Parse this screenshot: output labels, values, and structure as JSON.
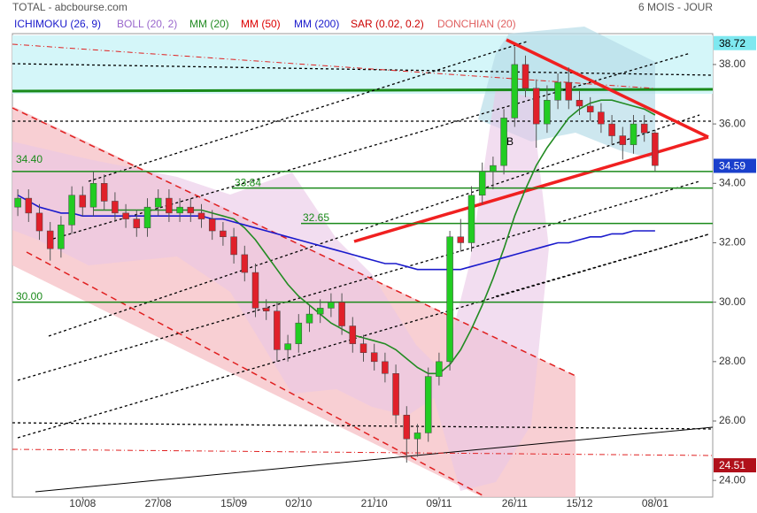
{
  "chart_data": {
    "type": "candlestick",
    "title": "TOTAL - abcbourse.com",
    "subtitle": "6 MOIS - JOUR",
    "up_color": "#22cc22",
    "down_color": "#e0202a",
    "categories": [
      null,
      null,
      null,
      null,
      null,
      null,
      "10/08",
      null,
      null,
      null,
      null,
      null,
      null,
      "27/08",
      null,
      null,
      null,
      null,
      null,
      null,
      "15/09",
      null,
      null,
      null,
      null,
      null,
      "02/10",
      null,
      null,
      null,
      null,
      null,
      null,
      "21/10",
      null,
      null,
      null,
      null,
      null,
      "09/11",
      null,
      null,
      null,
      null,
      null,
      null,
      "26/11",
      null,
      null,
      null,
      null,
      null,
      "15/12",
      null,
      null,
      null,
      null,
      null,
      null,
      "08/01"
    ],
    "open": [
      33.2,
      33.5,
      33.0,
      32.4,
      31.8,
      32.6,
      33.6,
      33.2,
      34.0,
      33.4,
      33.0,
      32.8,
      32.5,
      33.2,
      33.5,
      33.0,
      33.2,
      33.0,
      32.8,
      32.4,
      32.2,
      31.6,
      31.0,
      29.8,
      29.7,
      28.4,
      28.6,
      29.3,
      29.6,
      29.8,
      30.0,
      29.2,
      28.6,
      28.3,
      28.0,
      27.6,
      26.2,
      25.4,
      25.6,
      27.5,
      28.0,
      32.2,
      32.0,
      33.6,
      34.4,
      34.6,
      36.2,
      38.0,
      37.2,
      36.0,
      36.8,
      37.4,
      36.8,
      36.6,
      36.4,
      36.0,
      35.6,
      35.3,
      36.0,
      35.7
    ],
    "high": [
      33.8,
      33.8,
      33.3,
      32.7,
      32.9,
      33.9,
      33.9,
      34.4,
      34.3,
      33.7,
      33.3,
      33.1,
      33.5,
      33.8,
      33.8,
      33.5,
      33.5,
      33.3,
      33.1,
      32.7,
      32.5,
      31.9,
      31.3,
      30.1,
      30.0,
      28.9,
      29.6,
      29.9,
      30.1,
      30.3,
      30.3,
      29.5,
      28.9,
      28.6,
      28.3,
      27.9,
      26.5,
      25.9,
      27.8,
      28.3,
      32.4,
      32.8,
      33.9,
      34.7,
      34.9,
      36.5,
      38.6,
      38.3,
      37.5,
      37.3,
      37.7,
      37.9,
      37.1,
      36.9,
      36.7,
      36.3,
      35.9,
      36.3,
      36.3,
      35.8
    ],
    "low": [
      32.9,
      32.7,
      32.1,
      31.4,
      31.5,
      32.3,
      32.9,
      32.9,
      33.1,
      32.7,
      32.5,
      32.2,
      32.2,
      32.9,
      32.7,
      32.7,
      32.7,
      32.5,
      32.1,
      31.9,
      31.3,
      30.7,
      29.5,
      29.4,
      28.0,
      28.0,
      28.3,
      29.0,
      29.3,
      29.5,
      28.9,
      28.3,
      28.0,
      27.7,
      27.3,
      25.9,
      24.6,
      24.8,
      25.3,
      27.2,
      27.7,
      31.7,
      31.7,
      33.3,
      33.8,
      34.3,
      35.9,
      36.9,
      35.2,
      35.7,
      36.5,
      36.5,
      36.3,
      36.1,
      35.7,
      35.3,
      34.8,
      35.0,
      35.4,
      34.4
    ],
    "close": [
      33.5,
      33.0,
      32.4,
      31.8,
      32.6,
      33.6,
      33.2,
      34.0,
      33.4,
      33.0,
      32.8,
      32.5,
      33.2,
      33.5,
      33.0,
      33.2,
      33.0,
      32.8,
      32.4,
      32.2,
      31.6,
      31.0,
      29.8,
      29.7,
      28.4,
      28.6,
      29.3,
      29.6,
      29.8,
      30.0,
      29.2,
      28.6,
      28.3,
      28.0,
      27.6,
      26.2,
      25.4,
      25.6,
      27.5,
      28.0,
      32.2,
      32.0,
      33.6,
      34.4,
      34.6,
      36.2,
      38.0,
      37.2,
      36.0,
      36.8,
      37.4,
      36.8,
      36.6,
      36.4,
      36.0,
      35.6,
      35.3,
      36.0,
      35.7,
      34.6
    ],
    "indicators": [
      {
        "name": "ICHIMOKU (26, 9)",
        "color": "#1a1acc"
      },
      {
        "name": "BOLL (20, 2)",
        "color": "#9966cc"
      },
      {
        "name": "MM (20)",
        "color": "#228b22",
        "values": [
          null,
          null,
          null,
          null,
          null,
          null,
          null,
          33.1,
          33.1,
          33.1,
          33.1,
          33.1,
          33.1,
          33.1,
          33.1,
          33.1,
          33.1,
          33.1,
          33.0,
          32.9,
          32.8,
          32.5,
          32.1,
          31.6,
          31.1,
          30.6,
          30.2,
          29.9,
          29.6,
          29.3,
          29.1,
          28.9,
          28.8,
          28.7,
          28.6,
          28.4,
          28.1,
          27.8,
          27.6,
          27.6,
          27.9,
          28.4,
          29.1,
          29.9,
          30.8,
          31.8,
          32.9,
          33.8,
          34.6,
          35.2,
          35.7,
          36.2,
          36.5,
          36.7,
          36.8,
          36.8,
          36.7,
          36.6,
          36.5,
          36.3
        ]
      },
      {
        "name": "MM (50)",
        "color": "#dd0000"
      },
      {
        "name": "MM (200)",
        "color": "#1a1acc",
        "values": [
          33.6,
          33.4,
          33.2,
          33.1,
          33.0,
          33.0,
          32.9,
          32.9,
          32.9,
          32.9,
          32.9,
          32.9,
          32.9,
          32.9,
          32.9,
          32.9,
          32.9,
          32.9,
          32.8,
          32.8,
          32.7,
          32.6,
          32.5,
          32.4,
          32.3,
          32.2,
          32.1,
          32.0,
          31.9,
          31.8,
          31.7,
          31.6,
          31.5,
          31.4,
          31.3,
          31.3,
          31.2,
          31.1,
          31.1,
          31.1,
          31.1,
          31.1,
          31.2,
          31.3,
          31.4,
          31.5,
          31.6,
          31.7,
          31.8,
          31.9,
          32.0,
          32.0,
          32.1,
          32.2,
          32.2,
          32.3,
          32.3,
          32.4,
          32.4,
          32.4
        ]
      },
      {
        "name": "SAR (0.02, 0.2)",
        "color": "#cc0000"
      },
      {
        "name": "DONCHIAN (20)",
        "color": "#e06060"
      }
    ],
    "levels": [
      {
        "value": 34.4,
        "label": "34.40"
      },
      {
        "value": 33.84,
        "label": "33.84"
      },
      {
        "value": 32.65,
        "label": "32.65"
      },
      {
        "value": 30,
        "label": "30.00"
      }
    ],
    "level_color": "#1a8a1a",
    "markers": [
      {
        "value": 38.72,
        "label": "38.72",
        "color": "#7ee8f0",
        "text_color": "#000000"
      },
      {
        "value": 34.59,
        "label": "34.59",
        "color": "#1a3fcc",
        "text_color": "#ffffff"
      },
      {
        "value": 24.51,
        "label": "24.51",
        "color": "#b0101a",
        "text_color": "#ffffff"
      }
    ],
    "annotations": [
      "B"
    ],
    "ylim": [
      23.44,
      39.04
    ],
    "yticks": [
      {
        "value": 24,
        "label": "24.00"
      },
      {
        "value": 26,
        "label": "26.00"
      },
      {
        "value": 28,
        "label": "28.00"
      },
      {
        "value": 30,
        "label": "30.00"
      },
      {
        "value": 32,
        "label": "32.00"
      },
      {
        "value": 34,
        "label": "34.00"
      },
      {
        "value": 36,
        "label": "36.00"
      },
      {
        "value": 38,
        "label": "38.00"
      }
    ]
  }
}
